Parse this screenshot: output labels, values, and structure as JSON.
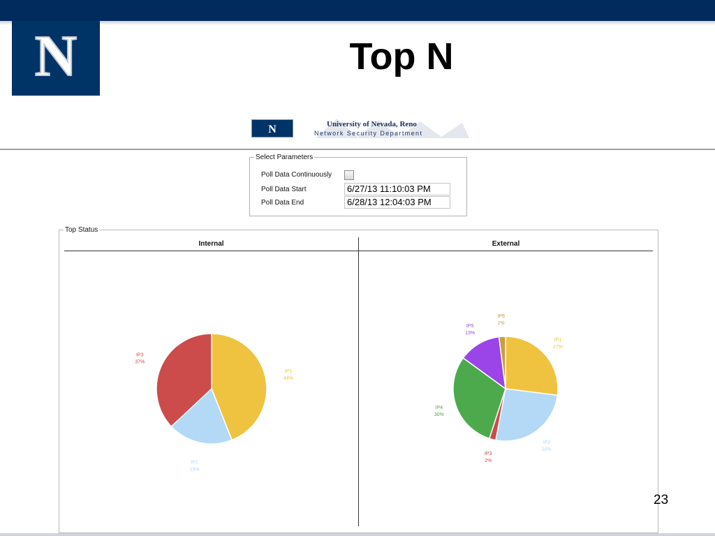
{
  "slide": {
    "title": "Top N",
    "logo_letter": "N",
    "page_number": "23",
    "colors": {
      "topbar": "#002b5c",
      "logo_bg": "#003366"
    }
  },
  "app_header": {
    "badge_letters": "N",
    "university_name": "University of Nevada, Reno",
    "department": "Network Security Department"
  },
  "parameters": {
    "legend": "Select Parameters",
    "poll_continuously_label": "Poll Data Continuously",
    "poll_continuously_checked": false,
    "poll_start_label": "Poll Data Start",
    "poll_start_value": "6/27/13 11:10:03 PM",
    "poll_end_label": "Poll Data End",
    "poll_end_value": "6/28/13 12:04:03 PM"
  },
  "top_status": {
    "legend": "Top Status",
    "internal_header": "Internal",
    "external_header": "External"
  },
  "chart_data": [
    {
      "type": "pie",
      "name": "Internal",
      "slices": [
        {
          "label": "IP1",
          "value": 44,
          "pct_label": "44%",
          "color": "#efc340"
        },
        {
          "label": "IP2",
          "value": 19,
          "pct_label": "19%",
          "color": "#b3d9f7"
        },
        {
          "label": "IP3",
          "value": 37,
          "pct_label": "37%",
          "color": "#cc4b4b"
        }
      ]
    },
    {
      "type": "pie",
      "name": "External",
      "slices": [
        {
          "label": "IP1",
          "value": 27,
          "pct_label": "27%",
          "color": "#efc340"
        },
        {
          "label": "IP2",
          "value": 26,
          "pct_label": "26%",
          "color": "#b3d9f7"
        },
        {
          "label": "IP3",
          "value": 2,
          "pct_label": "2%",
          "color": "#cc4b4b"
        },
        {
          "label": "IP4",
          "value": 30,
          "pct_label": "30%",
          "color": "#4caa4c"
        },
        {
          "label": "IP5",
          "value": 13,
          "pct_label": "13%",
          "color": "#9b45e8"
        },
        {
          "label": "IP6",
          "value": 2,
          "pct_label": "2%",
          "color": "#c8a040"
        }
      ]
    }
  ]
}
